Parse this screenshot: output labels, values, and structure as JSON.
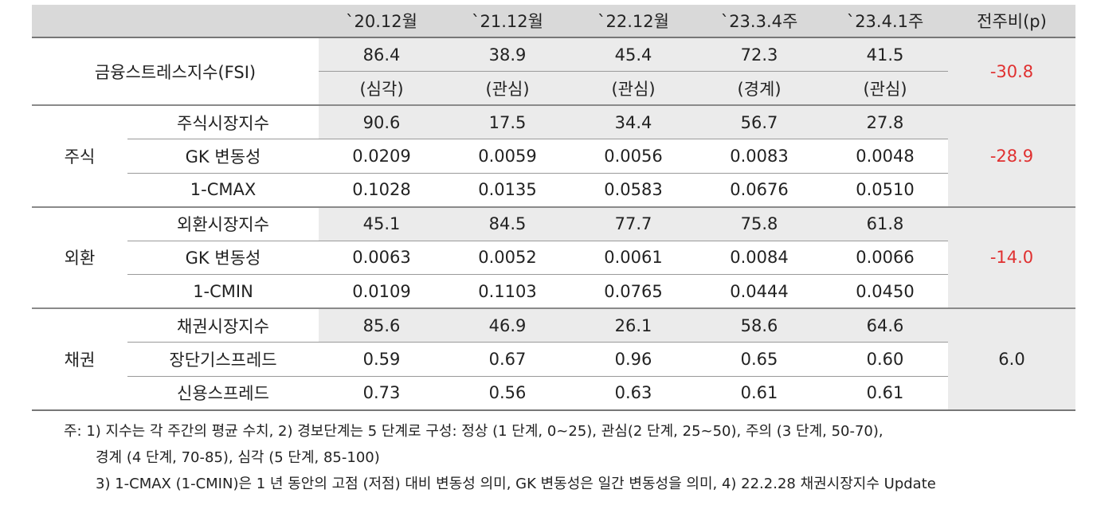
{
  "header": {
    "c0": "",
    "c1": "`20.12월",
    "c2": "`21.12월",
    "c3": "`22.12월",
    "c4": "`23.3.4주",
    "c5": "`23.4.1주",
    "c6": "전주비(p)"
  },
  "fsi": {
    "label": "금융스트레스지수(FSI)",
    "values": [
      "86.4",
      "38.9",
      "45.4",
      "72.3",
      "41.5"
    ],
    "levels": [
      "(심각)",
      "(관심)",
      "(관심)",
      "(경계)",
      "(관심)"
    ],
    "change": "-30.8"
  },
  "groups": [
    {
      "name": "주식",
      "change": "-28.9",
      "rows": [
        {
          "label": "주식시장지수",
          "values": [
            "90.6",
            "17.5",
            "34.4",
            "56.7",
            "27.8"
          ]
        },
        {
          "label": "GK 변동성",
          "values": [
            "0.0209",
            "0.0059",
            "0.0056",
            "0.0083",
            "0.0048"
          ]
        },
        {
          "label": "1-CMAX",
          "values": [
            "0.1028",
            "0.0135",
            "0.0583",
            "0.0676",
            "0.0510"
          ]
        }
      ]
    },
    {
      "name": "외환",
      "change": "-14.0",
      "rows": [
        {
          "label": "외환시장지수",
          "values": [
            "45.1",
            "84.5",
            "77.7",
            "75.8",
            "61.8"
          ]
        },
        {
          "label": "GK 변동성",
          "values": [
            "0.0063",
            "0.0052",
            "0.0061",
            "0.0084",
            "0.0066"
          ]
        },
        {
          "label": "1-CMIN",
          "values": [
            "0.0109",
            "0.1103",
            "0.0765",
            "0.0444",
            "0.0450"
          ]
        }
      ]
    },
    {
      "name": "채권",
      "change": "6.0",
      "rows": [
        {
          "label": "채권시장지수",
          "values": [
            "85.6",
            "46.9",
            "26.1",
            "58.6",
            "64.6"
          ]
        },
        {
          "label": "장단기스프레드",
          "values": [
            "0.59",
            "0.67",
            "0.96",
            "0.65",
            "0.60"
          ]
        },
        {
          "label": "신용스프레드",
          "values": [
            "0.73",
            "0.56",
            "0.63",
            "0.61",
            "0.61"
          ]
        }
      ]
    }
  ],
  "notes": [
    "주: 1) 지수는 각 주간의 평균 수치, 2) 경보단계는 5 단계로 구성: 정상 (1 단계, 0~25), 관심(2 단계, 25~50), 주의 (3 단계, 50-70),",
    "경계 (4 단계, 70-85), 심각 (5 단계, 85-100)",
    "3) 1-CMAX (1-CMIN)은 1 년 동안의 고점 (저점) 대비 변동성 의미, GK 변동성은 일간 변동성을 의미, 4) 22.2.28 채권시장지수 Update"
  ],
  "colors": {
    "header_bg": "#d9d9d9",
    "shade_bg": "#ebebeb",
    "negative": "#e03030"
  }
}
